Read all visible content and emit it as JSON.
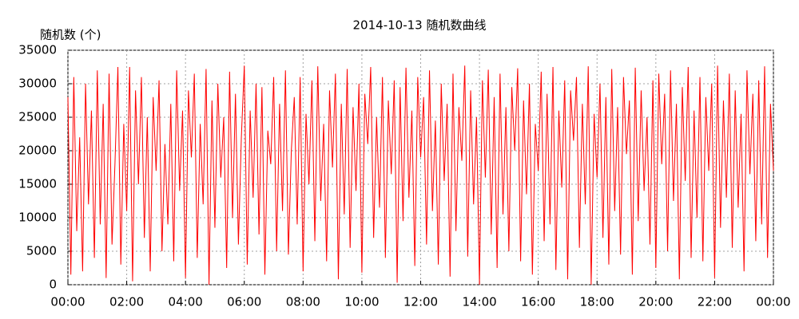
{
  "chart_data": {
    "type": "line",
    "title": "2014-10-13 随机数曲线",
    "y_label": "随机数 (个)",
    "color": "#ff0000",
    "grid": true,
    "xlim": [
      0,
      1440
    ],
    "ylim": [
      0,
      35000
    ],
    "yticks": [
      0,
      5000,
      10000,
      15000,
      20000,
      25000,
      30000,
      35000
    ],
    "xticks": [
      {
        "value": 0,
        "label": "00:00"
      },
      {
        "value": 120,
        "label": "02:00"
      },
      {
        "value": 240,
        "label": "04:00"
      },
      {
        "value": 360,
        "label": "06:00"
      },
      {
        "value": 480,
        "label": "08:00"
      },
      {
        "value": 600,
        "label": "10:00"
      },
      {
        "value": 720,
        "label": "12:00"
      },
      {
        "value": 840,
        "label": "14:00"
      },
      {
        "value": 960,
        "label": "16:00"
      },
      {
        "value": 1080,
        "label": "18:00"
      },
      {
        "value": 1200,
        "label": "20:00"
      },
      {
        "value": 1320,
        "label": "22:00"
      },
      {
        "value": 1440,
        "label": "00:00"
      }
    ],
    "x": [
      0,
      6,
      12,
      18,
      24,
      30,
      36,
      42,
      48,
      54,
      60,
      66,
      72,
      78,
      84,
      90,
      96,
      102,
      108,
      114,
      120,
      126,
      132,
      138,
      144,
      150,
      156,
      162,
      168,
      174,
      180,
      186,
      192,
      198,
      204,
      210,
      216,
      222,
      228,
      234,
      240,
      246,
      252,
      258,
      264,
      270,
      276,
      282,
      288,
      294,
      300,
      306,
      312,
      318,
      324,
      330,
      336,
      342,
      348,
      354,
      360,
      366,
      372,
      378,
      384,
      390,
      396,
      402,
      408,
      414,
      420,
      426,
      432,
      438,
      444,
      450,
      456,
      462,
      468,
      474,
      480,
      486,
      492,
      498,
      504,
      510,
      516,
      522,
      528,
      534,
      540,
      546,
      552,
      558,
      564,
      570,
      576,
      582,
      588,
      594,
      600,
      606,
      612,
      618,
      624,
      630,
      636,
      642,
      648,
      654,
      660,
      666,
      672,
      678,
      684,
      690,
      696,
      702,
      708,
      714,
      720,
      726,
      732,
      738,
      744,
      750,
      756,
      762,
      768,
      774,
      780,
      786,
      792,
      798,
      804,
      810,
      816,
      822,
      828,
      834,
      840,
      846,
      852,
      858,
      864,
      870,
      876,
      882,
      888,
      894,
      900,
      906,
      912,
      918,
      924,
      930,
      936,
      942,
      948,
      954,
      960,
      966,
      972,
      978,
      984,
      990,
      996,
      1002,
      1008,
      1014,
      1020,
      1026,
      1032,
      1038,
      1044,
      1050,
      1056,
      1062,
      1068,
      1074,
      1080,
      1086,
      1092,
      1098,
      1104,
      1110,
      1116,
      1122,
      1128,
      1134,
      1140,
      1146,
      1152,
      1158,
      1164,
      1170,
      1176,
      1182,
      1188,
      1194,
      1200,
      1206,
      1212,
      1218,
      1224,
      1230,
      1236,
      1242,
      1248,
      1254,
      1260,
      1266,
      1272,
      1278,
      1284,
      1290,
      1296,
      1302,
      1308,
      1314,
      1320,
      1326,
      1332,
      1338,
      1344,
      1350,
      1356,
      1362,
      1368,
      1374,
      1380,
      1386,
      1392,
      1398,
      1404,
      1410,
      1416,
      1422,
      1428,
      1434,
      1440
    ],
    "values": [
      28000,
      1500,
      31000,
      8000,
      22000,
      2000,
      30000,
      12000,
      26000,
      4000,
      32000,
      9000,
      27000,
      1000,
      31500,
      6000,
      18000,
      32500,
      3000,
      24000,
      11000,
      32500,
      500,
      29000,
      15000,
      31000,
      7000,
      25000,
      2000,
      28000,
      17000,
      30500,
      5000,
      21000,
      9000,
      27000,
      3500,
      32000,
      14000,
      26000,
      1000,
      29000,
      19000,
      31500,
      4000,
      24000,
      12000,
      32200,
      0,
      27500,
      8500,
      30000,
      16000,
      25000,
      2500,
      31800,
      10000,
      28500,
      6000,
      22000,
      32700,
      3000,
      26000,
      13000,
      30000,
      7500,
      29500,
      1500,
      23000,
      18000,
      31000,
      5000,
      27000,
      11000,
      32000,
      4500,
      20000,
      28000,
      9000,
      31000,
      2000,
      25500,
      15000,
      30500,
      6500,
      32600,
      12500,
      24000,
      3500,
      29000,
      17500,
      31500,
      800,
      27000,
      10500,
      32200,
      5500,
      26500,
      14000,
      30000,
      1800,
      28500,
      21000,
      32500,
      7000,
      25000,
      11500,
      31000,
      4000,
      27500,
      16500,
      30500,
      300,
      29500,
      9500,
      32400,
      13000,
      26000,
      2800,
      31000,
      19000,
      28000,
      6000,
      32000,
      11000,
      24500,
      3000,
      30000,
      15500,
      27000,
      1200,
      31500,
      8000,
      26500,
      18500,
      32700,
      4200,
      29000,
      12000,
      25000,
      0,
      30500,
      16000,
      32100,
      7500,
      28000,
      2500,
      31500,
      10500,
      26500,
      5000,
      29500,
      20000,
      32300,
      3500,
      27500,
      13500,
      30000,
      1500,
      24000,
      17000,
      31800,
      6500,
      28500,
      9000,
      32500,
      2200,
      26000,
      14500,
      30500,
      800,
      29000,
      21500,
      31000,
      5500,
      27000,
      12000,
      32600,
      0,
      25500,
      16000,
      30000,
      7000,
      28000,
      3000,
      32200,
      11000,
      26500,
      4500,
      31000,
      19500,
      27500,
      1500,
      32400,
      9500,
      29000,
      14000,
      25000,
      6000,
      30500,
      2500,
      31500,
      18000,
      28500,
      5000,
      32000,
      12500,
      27000,
      800,
      29500,
      15500,
      32500,
      4000,
      26000,
      10000,
      31000,
      3500,
      28000,
      17000,
      30000,
      1000,
      32700,
      8500,
      27500,
      13000,
      31500,
      5500,
      29000,
      11500,
      25500,
      2000,
      32000,
      16500,
      28500,
      6500,
      30500,
      9000,
      32600,
      4000,
      27000,
      17000
    ]
  }
}
